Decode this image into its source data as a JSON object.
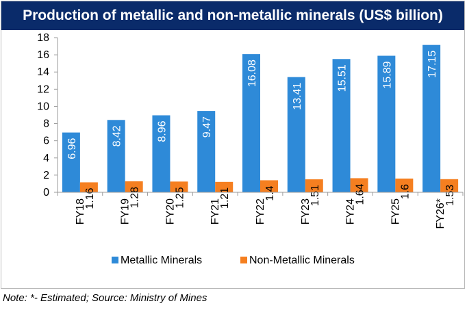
{
  "chart_data": {
    "type": "bar",
    "title": "Production of metallic and non-metallic minerals (US$ billion)",
    "categories": [
      "FY18",
      "FY19",
      "FY20",
      "FY21",
      "FY22",
      "FY23",
      "FY24",
      "FY25",
      "FY26*"
    ],
    "series": [
      {
        "name": "Metallic Minerals",
        "color": "#2e8ad8",
        "values": [
          6.96,
          8.42,
          8.96,
          9.47,
          16.08,
          13.41,
          15.51,
          15.89,
          17.15
        ]
      },
      {
        "name": "Non-Metallic Minerals",
        "color": "#f57f20",
        "values": [
          1.16,
          1.28,
          1.25,
          1.21,
          1.4,
          1.51,
          1.64,
          1.6,
          1.53
        ]
      }
    ],
    "ylim": [
      0,
      18
    ],
    "yticks": [
      0,
      2,
      4,
      6,
      8,
      10,
      12,
      14,
      16,
      18
    ],
    "grid": false,
    "legend_position": "bottom",
    "data_labels": true
  },
  "note": "Note: *- Estimated; Source: Ministry of Mines"
}
